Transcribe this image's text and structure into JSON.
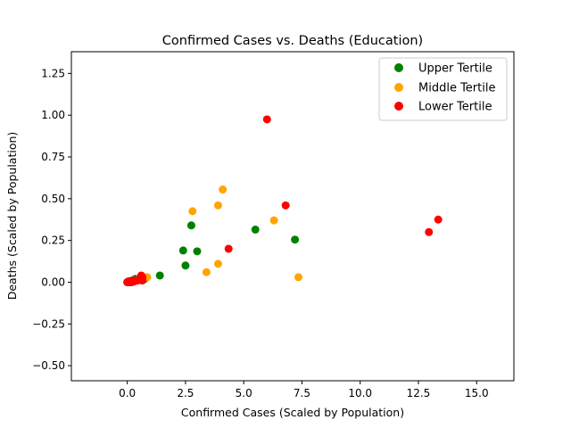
{
  "chart_data": {
    "type": "scatter",
    "title": "Confirmed Cases vs. Deaths (Education)",
    "xlabel": "Confirmed Cases (Scaled by Population)",
    "ylabel": "Deaths (Scaled by Population)",
    "xlim": [
      -2.4,
      16.6
    ],
    "ylim": [
      -0.59,
      1.38
    ],
    "xticks": [
      0.0,
      2.5,
      5.0,
      7.5,
      10.0,
      12.5,
      15.0
    ],
    "xtick_labels": [
      "0.0",
      "2.5",
      "5.0",
      "7.5",
      "10.0",
      "12.5",
      "15.0"
    ],
    "yticks": [
      -0.5,
      -0.25,
      0.0,
      0.25,
      0.5,
      0.75,
      1.0,
      1.25
    ],
    "ytick_labels": [
      "−0.50",
      "−0.25",
      "0.00",
      "0.25",
      "0.50",
      "0.75",
      "1.00",
      "1.25"
    ],
    "grid": false,
    "legend": "top-right",
    "series": [
      {
        "name": "Upper Tertile",
        "color": "#008000",
        "points": [
          [
            0.0,
            0.0
          ],
          [
            0.05,
            0.0
          ],
          [
            0.1,
            0.005
          ],
          [
            0.15,
            0.0
          ],
          [
            0.2,
            0.01
          ],
          [
            0.25,
            0.005
          ],
          [
            0.3,
            0.01
          ],
          [
            0.35,
            0.02
          ],
          [
            0.4,
            0.01
          ],
          [
            0.5,
            0.015
          ],
          [
            0.6,
            0.02
          ],
          [
            0.75,
            0.02
          ],
          [
            0.85,
            0.03
          ],
          [
            1.4,
            0.04
          ],
          [
            2.4,
            0.19
          ],
          [
            2.5,
            0.1
          ],
          [
            2.75,
            0.34
          ],
          [
            3.0,
            0.185
          ],
          [
            5.5,
            0.315
          ],
          [
            7.2,
            0.255
          ]
        ]
      },
      {
        "name": "Middle Tertile",
        "color": "#FFA500",
        "points": [
          [
            0.05,
            0.0
          ],
          [
            0.1,
            0.0
          ],
          [
            0.2,
            0.005
          ],
          [
            0.3,
            0.01
          ],
          [
            0.4,
            0.01
          ],
          [
            0.5,
            0.015
          ],
          [
            0.6,
            0.02
          ],
          [
            0.7,
            0.025
          ],
          [
            0.85,
            0.03
          ],
          [
            2.8,
            0.425
          ],
          [
            3.4,
            0.06
          ],
          [
            3.9,
            0.11
          ],
          [
            3.9,
            0.46
          ],
          [
            4.1,
            0.555
          ],
          [
            6.3,
            0.37
          ],
          [
            7.35,
            0.03
          ]
        ]
      },
      {
        "name": "Lower Tertile",
        "color": "#FF0000",
        "points": [
          [
            0.0,
            0.0
          ],
          [
            0.05,
            0.005
          ],
          [
            0.1,
            0.0
          ],
          [
            0.15,
            0.005
          ],
          [
            0.2,
            0.0
          ],
          [
            0.25,
            0.01
          ],
          [
            0.3,
            0.005
          ],
          [
            0.35,
            0.01
          ],
          [
            0.45,
            0.01
          ],
          [
            0.55,
            0.015
          ],
          [
            0.6,
            0.02
          ],
          [
            0.6,
            0.04
          ],
          [
            0.65,
            0.03
          ],
          [
            0.65,
            0.01
          ],
          [
            4.35,
            0.2
          ],
          [
            6.0,
            0.975
          ],
          [
            6.8,
            0.46
          ],
          [
            12.95,
            0.3
          ],
          [
            13.35,
            0.375
          ]
        ]
      }
    ]
  }
}
